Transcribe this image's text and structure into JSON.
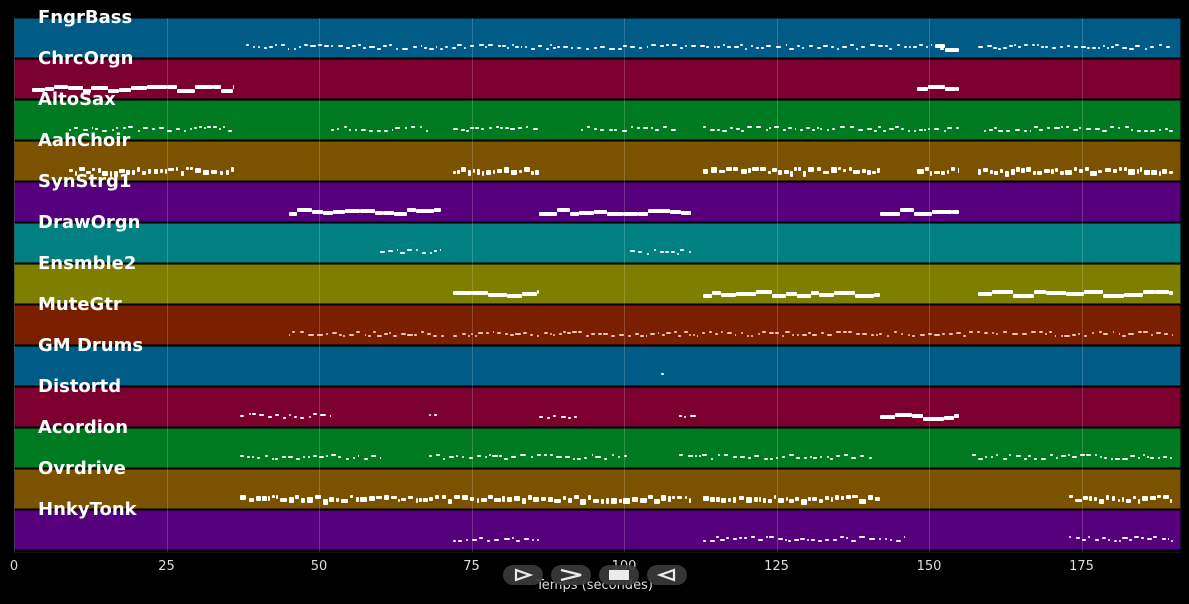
{
  "tracks": [
    {
      "name": "FngrBass",
      "color": "#005b86"
    },
    {
      "name": "ChrcOrgn",
      "color": "#7b0030"
    },
    {
      "name": "AltoSax",
      "color": "#007a20"
    },
    {
      "name": "AahChoir",
      "color": "#7a5200"
    },
    {
      "name": "SynStrg1",
      "color": "#56007e"
    },
    {
      "name": "DrawOrgn",
      "color": "#008080"
    },
    {
      "name": "Ensmble2",
      "color": "#7e7e00"
    },
    {
      "name": "MuteGtr",
      "color": "#7a2000"
    },
    {
      "name": "GM Drums",
      "color": "#005b86"
    },
    {
      "name": "Distortd",
      "color": "#7b0030"
    },
    {
      "name": "Acordion",
      "color": "#007a20"
    },
    {
      "name": "Ovrdrive",
      "color": "#7a5200"
    },
    {
      "name": "HnkyTonk",
      "color": "#56007e"
    }
  ],
  "x_axis": {
    "label": "Temps (secondes)",
    "ticks": [
      "0",
      "25",
      "50",
      "75",
      "100",
      "125",
      "150",
      "175"
    ]
  },
  "controls": [
    {
      "name": "play-forward-control",
      "icon": "play-outline-icon"
    },
    {
      "name": "forward-control",
      "icon": "chevron-right-icon"
    },
    {
      "name": "stop-control",
      "icon": "stop-icon"
    },
    {
      "name": "play-backward-control",
      "icon": "play-back-outline-icon"
    }
  ]
}
